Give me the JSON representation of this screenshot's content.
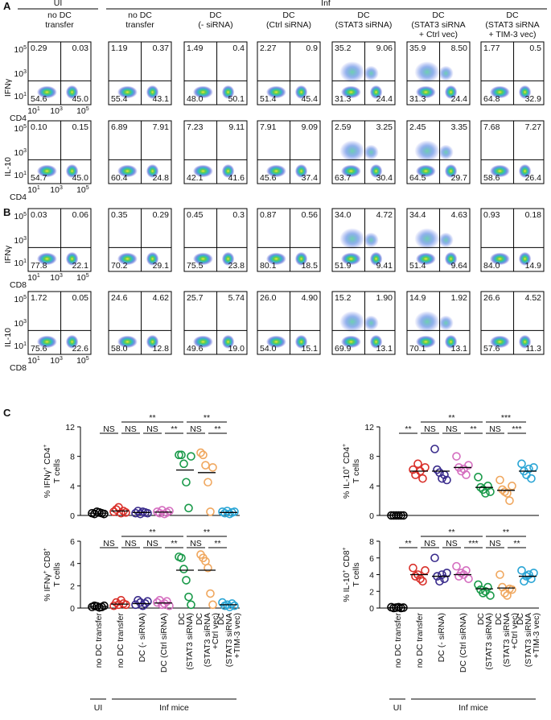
{
  "panel_labels": [
    "A",
    "B",
    "C"
  ],
  "flow": {
    "groups": [
      "UI",
      "Inf"
    ],
    "columns": [
      [
        "no DC",
        "transfer"
      ],
      [
        "no DC",
        "transfer"
      ],
      [
        "DC",
        "(- siRNA)"
      ],
      [
        "DC",
        "(Ctrl siRNA)"
      ],
      [
        "DC",
        "(STAT3 siRNA)"
      ],
      [
        "DC",
        "(STAT3 siRNA",
        "+ Ctrl vec)"
      ],
      [
        "DC",
        "(STAT3 siRNA",
        "+ TIM-3 vec)"
      ]
    ],
    "axis_ticks": [
      {
        "base": "10",
        "exp": "1"
      },
      {
        "base": "10",
        "exp": "3"
      },
      {
        "base": "10",
        "exp": "5"
      }
    ],
    "rows": [
      {
        "y_label": "IFNγ",
        "x_label": "CD4",
        "quadrants": [
          [
            "0.29",
            "0.03",
            "54.6",
            "45.0"
          ],
          [
            "1.19",
            "0.37",
            "55.4",
            "43.1"
          ],
          [
            "1.49",
            "0.4",
            "48.0",
            "50.1"
          ],
          [
            "2.27",
            "0.9",
            "51.4",
            "45.4"
          ],
          [
            "35.2",
            "9.06",
            "31.3",
            "24.4"
          ],
          [
            "35.9",
            "8.50",
            "31.3",
            "24.4"
          ],
          [
            "1.77",
            "0.5",
            "64.8",
            "32.9"
          ]
        ]
      },
      {
        "y_label": "IL-10",
        "x_label": "CD4",
        "quadrants": [
          [
            "0.10",
            "0.15",
            "54.7",
            "45.0"
          ],
          [
            "6.89",
            "7.91",
            "60.4",
            "24.8"
          ],
          [
            "7.23",
            "9.11",
            "42.1",
            "41.6"
          ],
          [
            "7.91",
            "9.09",
            "45.6",
            "37.4"
          ],
          [
            "2.59",
            "3.25",
            "63.7",
            "30.4"
          ],
          [
            "2.45",
            "3.35",
            "64.5",
            "29.7"
          ],
          [
            "7.68",
            "7.27",
            "58.6",
            "26.4"
          ]
        ]
      },
      {
        "y_label": "IFNγ",
        "x_label": "CD8",
        "quadrants": [
          [
            "0.03",
            "0.06",
            "77.8",
            "22.1"
          ],
          [
            "0.35",
            "0.29",
            "70.2",
            "29.1"
          ],
          [
            "0.45",
            "0.3",
            "75.5",
            "23.8"
          ],
          [
            "0.87",
            "0.56",
            "80.1",
            "18.5"
          ],
          [
            "34.0",
            "4.72",
            "51.9",
            "9.41"
          ],
          [
            "34.4",
            "4.63",
            "51.4",
            "9.64"
          ],
          [
            "0.93",
            "0.18",
            "84.0",
            "14.9"
          ]
        ]
      },
      {
        "y_label": "IL-10",
        "x_label": "CD8",
        "quadrants": [
          [
            "1.72",
            "0.05",
            "75.6",
            "22.6"
          ],
          [
            "24.6",
            "4.62",
            "58.0",
            "12.8"
          ],
          [
            "25.7",
            "5.74",
            "49.6",
            "19.0"
          ],
          [
            "26.0",
            "4.90",
            "54.0",
            "15.1"
          ],
          [
            "15.2",
            "1.90",
            "69.9",
            "13.1"
          ],
          [
            "14.9",
            "1.92",
            "70.1",
            "13.1"
          ],
          [
            "26.6",
            "4.52",
            "57.6",
            "11.3"
          ]
        ]
      }
    ]
  },
  "chart_data": [
    {
      "type": "scatter",
      "ylabel": {
        "parts": [
          "% IFNγ",
          "+",
          " CD4",
          "+"
        ],
        "line2": "T cells"
      },
      "ylim": [
        0,
        12
      ],
      "yticks": [
        0,
        4,
        8,
        12
      ],
      "series": [
        {
          "color": "#000000",
          "values": [
            0.3,
            0.2,
            0.5,
            0.4,
            0.3,
            0.2
          ],
          "mean": 0.3
        },
        {
          "color": "#d9312b",
          "values": [
            0.5,
            0.8,
            1.1,
            0.3,
            0.6,
            0.4
          ],
          "mean": 0.6
        },
        {
          "color": "#3a2c8c",
          "values": [
            0.3,
            0.6,
            0.2,
            0.5,
            0.4,
            0.3
          ],
          "mean": 0.4
        },
        {
          "color": "#d56fc0",
          "values": [
            0.5,
            0.3,
            0.7,
            0.2,
            0.4,
            0.6
          ],
          "mean": 0.45
        },
        {
          "color": "#1a9a4a",
          "values": [
            8.2,
            8.2,
            7.0,
            4.5,
            1.0,
            8.0
          ],
          "mean": 6.15
        },
        {
          "color": "#f0a860",
          "values": [
            8.5,
            8.2,
            6.8,
            4.5,
            0.5,
            6.5
          ],
          "mean": 5.8
        },
        {
          "color": "#2aa5d5",
          "values": [
            0.5,
            0.3,
            0.6,
            0.2,
            0.4,
            0.5
          ],
          "mean": 0.4
        }
      ],
      "significance": {
        "adjacent": [
          "NS",
          "NS",
          "NS",
          "**",
          "NS",
          "**"
        ],
        "spanning": [
          "**",
          "**"
        ]
      }
    },
    {
      "type": "scatter",
      "ylabel": {
        "parts": [
          "% IL-10",
          "+",
          " CD4",
          "+"
        ],
        "line2": "T cells"
      },
      "ylim": [
        0,
        12
      ],
      "yticks": [
        0,
        4,
        8,
        12
      ],
      "series": [
        {
          "color": "#000000",
          "values": [
            0,
            0,
            0,
            0,
            0,
            0
          ],
          "mean": 0.05
        },
        {
          "color": "#d9312b",
          "values": [
            6.2,
            5.5,
            7.0,
            6.0,
            5.0,
            6.5
          ],
          "mean": 6.0
        },
        {
          "color": "#3a2c8c",
          "values": [
            9.0,
            6.2,
            5.8,
            5.0,
            5.5,
            4.8
          ],
          "mean": 6.0
        },
        {
          "color": "#d56fc0",
          "values": [
            8.0,
            6.5,
            6.0,
            6.3,
            5.5,
            6.8
          ],
          "mean": 6.5
        },
        {
          "color": "#1a9a4a",
          "values": [
            5.2,
            3.8,
            3.5,
            3.0,
            4.0,
            3.2
          ],
          "mean": 3.8
        },
        {
          "color": "#f0a860",
          "values": [
            4.8,
            3.5,
            3.2,
            3.0,
            2.0,
            4.0
          ],
          "mean": 3.4
        },
        {
          "color": "#2aa5d5",
          "values": [
            7.0,
            6.0,
            5.5,
            6.3,
            5.0,
            6.5
          ],
          "mean": 6.0
        }
      ],
      "significance": {
        "adjacent": [
          "**",
          "NS",
          "NS",
          "**",
          "NS",
          "***"
        ],
        "spanning": [
          "**",
          "***"
        ]
      }
    },
    {
      "type": "scatter",
      "ylabel": {
        "parts": [
          "% IFNγ",
          "+",
          " CD8",
          "+"
        ],
        "line2": "T cells"
      },
      "ylim": [
        0,
        6
      ],
      "yticks": [
        0,
        2,
        4,
        6
      ],
      "categories": [
        [
          "no DC transfer"
        ],
        [
          "no DC transfer"
        ],
        [
          "DC (- siRNA)"
        ],
        [
          "DC (Ctrl siRNA)"
        ],
        [
          "DC",
          "(STAT3 siRNA)"
        ],
        [
          "DC",
          "(STAT3 siRNA",
          "+Ctrl vec)"
        ],
        [
          "DC",
          "(STAT3 siRNA",
          "+TIM-3 vec)"
        ]
      ],
      "groups": [
        "UI",
        "Inf mice"
      ],
      "series": [
        {
          "color": "#000000",
          "values": [
            0.1,
            0.2,
            0.15,
            0.05,
            0.1,
            0.2
          ],
          "mean": 0.15
        },
        {
          "color": "#d9312b",
          "values": [
            0.2,
            0.5,
            0.3,
            0.7,
            0.4,
            0.3
          ],
          "mean": 0.35
        },
        {
          "color": "#3a2c8c",
          "values": [
            0.3,
            0.7,
            0.5,
            0.2,
            0.4,
            0.6
          ],
          "mean": 0.4
        },
        {
          "color": "#d56fc0",
          "values": [
            0.5,
            0.7,
            0.3,
            0.4,
            0.6,
            0.2
          ],
          "mean": 0.45
        },
        {
          "color": "#1a9a4a",
          "values": [
            4.6,
            4.5,
            3.5,
            2.5,
            1.0,
            0.3
          ],
          "mean": 3.4
        },
        {
          "color": "#f0a860",
          "values": [
            4.8,
            4.5,
            4.2,
            3.6,
            1.3,
            0.3
          ],
          "mean": 3.4
        },
        {
          "color": "#2aa5d5",
          "values": [
            0.5,
            0.2,
            0.3,
            0.1,
            0.4,
            0.2
          ],
          "mean": 0.3
        }
      ],
      "significance": {
        "adjacent": [
          "NS",
          "NS",
          "NS",
          "**",
          "NS",
          "**"
        ],
        "spanning": [
          "**",
          "**"
        ]
      }
    },
    {
      "type": "scatter",
      "ylabel": {
        "parts": [
          "% IL-10",
          "+",
          " CD8",
          "+"
        ],
        "line2": "T cells"
      },
      "ylim": [
        0,
        8
      ],
      "yticks": [
        0,
        2,
        4,
        6,
        8
      ],
      "categories": [
        [
          "no DC transfer"
        ],
        [
          "no DC transfer"
        ],
        [
          "DC (- siRNA)"
        ],
        [
          "DC (Ctrl siRNA)"
        ],
        [
          "DC",
          "(STAT3 siRNA)"
        ],
        [
          "DC",
          "(STAT3 siRNA",
          "+Ctrl vec)"
        ],
        [
          "DC",
          "(STAT3 siRNA",
          "+TIM-3 vec)"
        ]
      ],
      "groups": [
        "UI",
        "Inf mice"
      ],
      "series": [
        {
          "color": "#000000",
          "values": [
            0.1,
            0,
            0.05,
            0.1,
            0,
            0.05
          ],
          "mean": 0.05
        },
        {
          "color": "#d9312b",
          "values": [
            4.8,
            3.8,
            4.0,
            3.5,
            3.2,
            4.5
          ],
          "mean": 4.0
        },
        {
          "color": "#3a2c8c",
          "values": [
            6.0,
            3.8,
            3.2,
            4.0,
            3.5,
            4.2
          ],
          "mean": 3.8
        },
        {
          "color": "#d56fc0",
          "values": [
            5.0,
            3.8,
            4.2,
            4.0,
            4.5,
            3.5
          ],
          "mean": 4.0
        },
        {
          "color": "#1a9a4a",
          "values": [
            2.8,
            2.2,
            1.8,
            2.0,
            2.5,
            1.5
          ],
          "mean": 2.3
        },
        {
          "color": "#f0a860",
          "values": [
            4.0,
            2.5,
            1.8,
            1.5,
            2.3,
            2.2
          ],
          "mean": 2.4
        },
        {
          "color": "#2aa5d5",
          "values": [
            4.5,
            3.2,
            3.8,
            4.0,
            3.5,
            4.2
          ],
          "mean": 3.8
        }
      ],
      "significance": {
        "adjacent": [
          "**",
          "NS",
          "NS",
          "***",
          "NS",
          "**"
        ],
        "spanning": [
          "**",
          "**"
        ]
      }
    }
  ]
}
